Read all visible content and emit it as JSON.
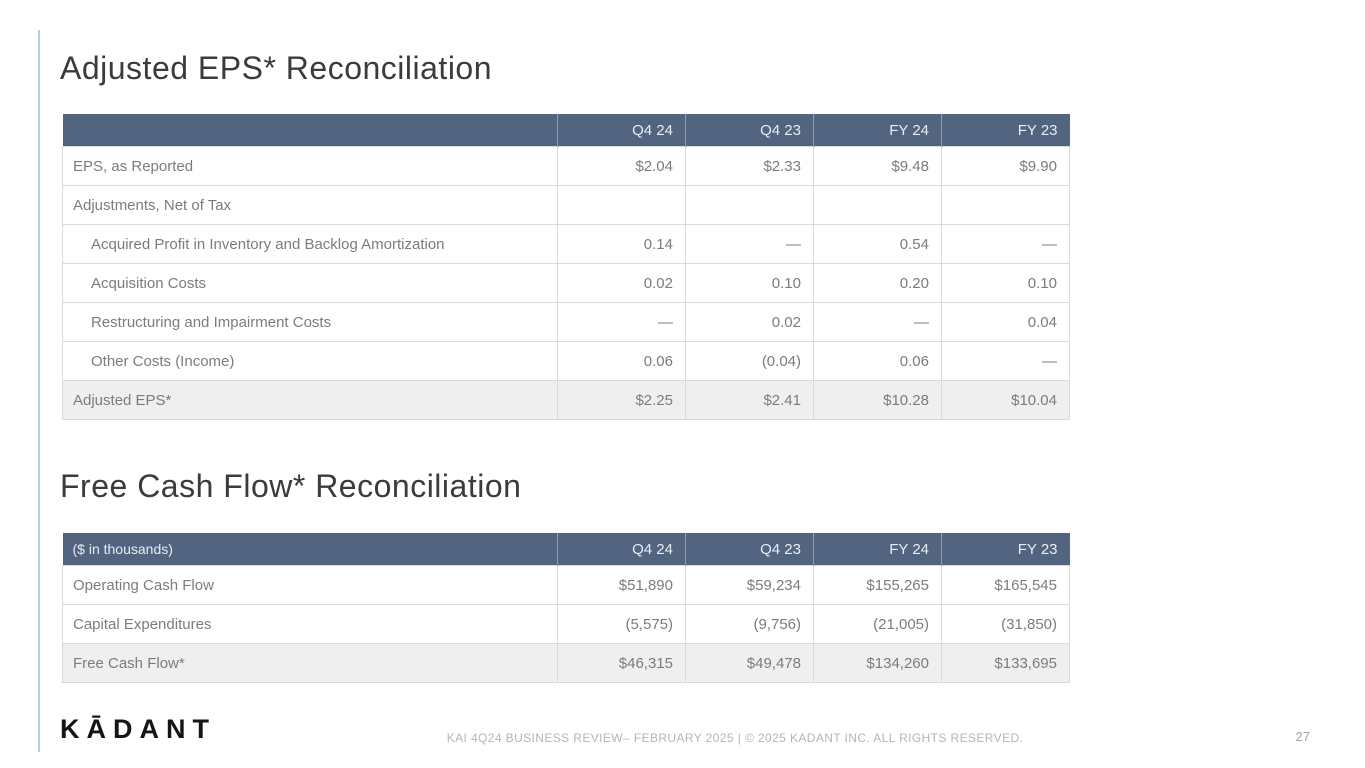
{
  "slide": {
    "logo_text": "KĀDANT",
    "footer_text": "KAI 4Q24 BUSINESS REVIEW– FEBRUARY 2025  |  © 2025 KADANT INC. ALL RIGHTS RESERVED.",
    "page_number": "27"
  },
  "colors": {
    "header_bg": "#536480",
    "header_text": "#e9edf3",
    "body_text": "#7c7c7c",
    "title_text": "#3b3b3b",
    "row_border": "#dadada",
    "total_row_bg": "#efefef",
    "accent_line": "#aed3df"
  },
  "eps_table": {
    "title": "Adjusted EPS* Reconciliation",
    "units_label": "",
    "columns": [
      "Q4 24",
      "Q4 23",
      "FY 24",
      "FY 23"
    ],
    "rows": [
      {
        "label": "EPS, as Reported",
        "indent": false,
        "total": false,
        "values": [
          "$2.04",
          "$2.33",
          "$9.48",
          "$9.90"
        ]
      },
      {
        "label": "Adjustments, Net of Tax",
        "indent": false,
        "total": false,
        "values": [
          "",
          "",
          "",
          ""
        ]
      },
      {
        "label": "Acquired Profit in Inventory and Backlog Amortization",
        "indent": true,
        "total": false,
        "values": [
          "0.14",
          "—",
          "0.54",
          "—"
        ]
      },
      {
        "label": "Acquisition Costs",
        "indent": true,
        "total": false,
        "values": [
          "0.02",
          "0.10",
          "0.20",
          "0.10"
        ]
      },
      {
        "label": "Restructuring and Impairment Costs",
        "indent": true,
        "total": false,
        "values": [
          "—",
          "0.02",
          "—",
          "0.04"
        ]
      },
      {
        "label": "Other Costs (Income)",
        "indent": true,
        "total": false,
        "values": [
          "0.06",
          "(0.04)",
          "0.06",
          "—"
        ]
      },
      {
        "label": "Adjusted EPS*",
        "indent": false,
        "total": true,
        "values": [
          "$2.25",
          "$2.41",
          "$10.28",
          "$10.04"
        ]
      }
    ]
  },
  "fcf_table": {
    "title": "Free Cash Flow* Reconciliation",
    "units_label": "($ in thousands)",
    "columns": [
      "Q4 24",
      "Q4 23",
      "FY 24",
      "FY 23"
    ],
    "rows": [
      {
        "label": "Operating Cash Flow",
        "indent": false,
        "total": false,
        "values": [
          "$51,890",
          "$59,234",
          "$155,265",
          "$165,545"
        ]
      },
      {
        "label": "Capital Expenditures",
        "indent": false,
        "total": false,
        "values": [
          "(5,575)",
          "(9,756)",
          "(21,005)",
          "(31,850)"
        ]
      },
      {
        "label": "Free Cash Flow*",
        "indent": false,
        "total": true,
        "values": [
          "$46,315",
          "$49,478",
          "$134,260",
          "$133,695"
        ]
      }
    ]
  }
}
